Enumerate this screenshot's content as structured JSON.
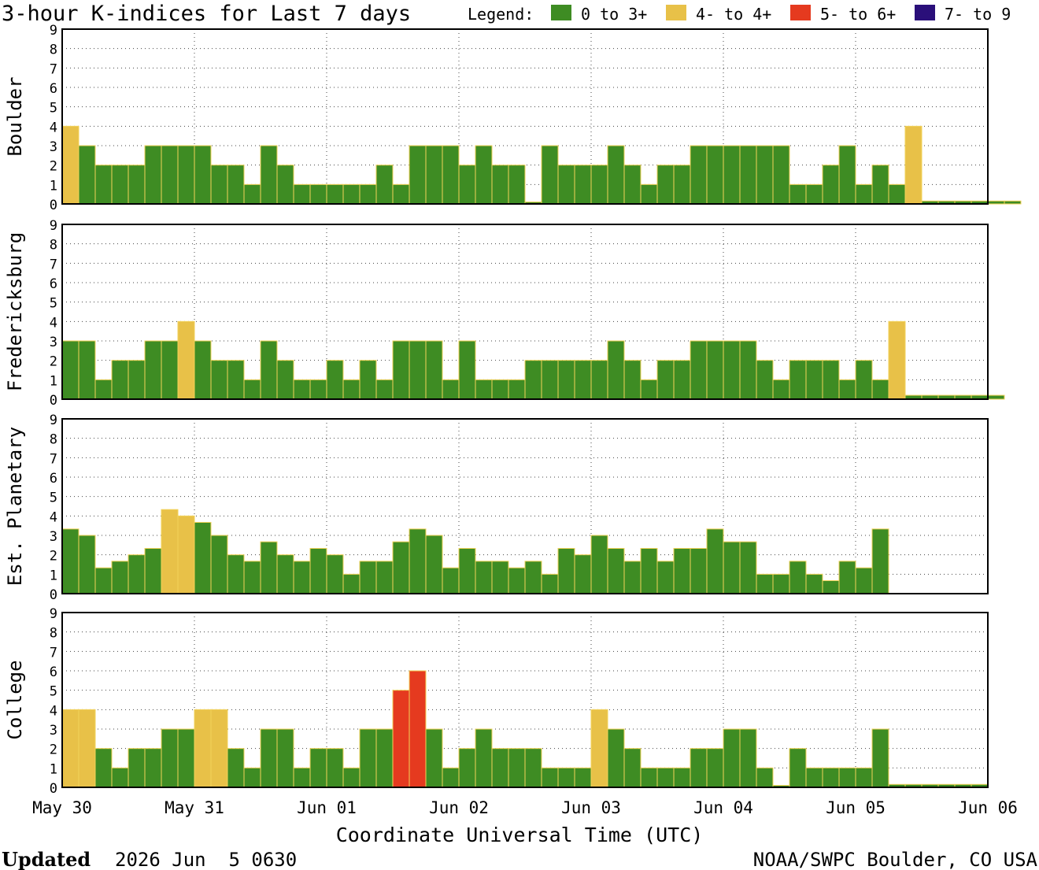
{
  "title": "3-hour K-indices for Last 7 days",
  "legend": {
    "label": "Legend:",
    "items": [
      {
        "label": "0 to 3+",
        "color": "#3e8c23"
      },
      {
        "label": "4- to 4+",
        "color": "#e8c148"
      },
      {
        "label": "5- to 6+",
        "color": "#e53a1f"
      },
      {
        "label": "7- to 9",
        "color": "#2a0f7a"
      }
    ]
  },
  "xlabel": "Coordinate Universal Time (UTC)",
  "footer": {
    "updated_label": "Updated",
    "updated_value": "2026 Jun  5 0630",
    "source": "NOAA/SWPC Boulder, CO USA"
  },
  "chart_data": {
    "type": "bar",
    "x_ticks": [
      "May 30",
      "May 31",
      "Jun 01",
      "Jun 02",
      "Jun 03",
      "Jun 04",
      "Jun 05",
      "Jun 06"
    ],
    "bins_per_day": 8,
    "ylim": [
      0,
      9
    ],
    "yticks": [
      "0",
      "1",
      "2",
      "3",
      "4",
      "5",
      "6",
      "7",
      "8",
      "9"
    ],
    "grid": true,
    "panels": [
      {
        "name": "Boulder",
        "values": [
          4,
          3,
          2,
          2,
          2,
          3,
          3,
          3,
          3,
          2,
          2,
          1,
          3,
          2,
          1,
          1,
          1,
          1,
          1,
          2,
          1,
          3,
          3,
          3,
          2,
          3,
          2,
          2,
          0.1,
          3,
          2,
          2,
          2,
          3,
          2,
          1,
          2,
          2,
          3,
          3,
          3,
          3,
          3,
          3,
          1,
          1,
          2,
          3,
          1,
          2,
          1,
          4,
          0.15,
          0.15,
          0.15,
          0.15,
          0.15,
          0.15
        ]
      },
      {
        "name": "Fredericksburg",
        "values": [
          3,
          3,
          1,
          2,
          2,
          3,
          3,
          4,
          3,
          2,
          2,
          1,
          3,
          2,
          1,
          1,
          2,
          1,
          2,
          1,
          3,
          3,
          3,
          1,
          3,
          1,
          1,
          1,
          2,
          2,
          2,
          2,
          2,
          3,
          2,
          1,
          2,
          2,
          3,
          3,
          3,
          3,
          2,
          1,
          2,
          2,
          2,
          1,
          2,
          1,
          4,
          0.2,
          0.2,
          0.2,
          0.2,
          0.2,
          0.2
        ]
      },
      {
        "name": "Est. Planetary",
        "values": [
          3.33,
          3,
          1.33,
          1.67,
          2,
          2.33,
          4.33,
          4,
          3.67,
          3,
          2,
          1.67,
          2.67,
          2,
          1.67,
          2.33,
          2,
          1,
          1.67,
          1.67,
          2.67,
          3.33,
          3,
          1.33,
          2.33,
          1.67,
          1.67,
          1.33,
          1.67,
          1,
          2.33,
          2,
          3,
          2.33,
          1.67,
          2.33,
          1.67,
          2.33,
          2.33,
          3.33,
          2.67,
          2.67,
          1,
          1,
          1.67,
          1,
          0.67,
          1.67,
          1.33,
          3.33
        ]
      },
      {
        "name": "College",
        "values": [
          4,
          4,
          2,
          1,
          2,
          2,
          3,
          3,
          4,
          4,
          2,
          1,
          3,
          3,
          1,
          2,
          2,
          1,
          3,
          3,
          5,
          6,
          3,
          1,
          2,
          3,
          2,
          2,
          2,
          1,
          1,
          1,
          4,
          3,
          2,
          1,
          1,
          1,
          2,
          2,
          3,
          3,
          1,
          0.1,
          2,
          1,
          1,
          1,
          1,
          3,
          0.15,
          0.15,
          0.15,
          0.15,
          0.15,
          0.15
        ]
      }
    ]
  }
}
